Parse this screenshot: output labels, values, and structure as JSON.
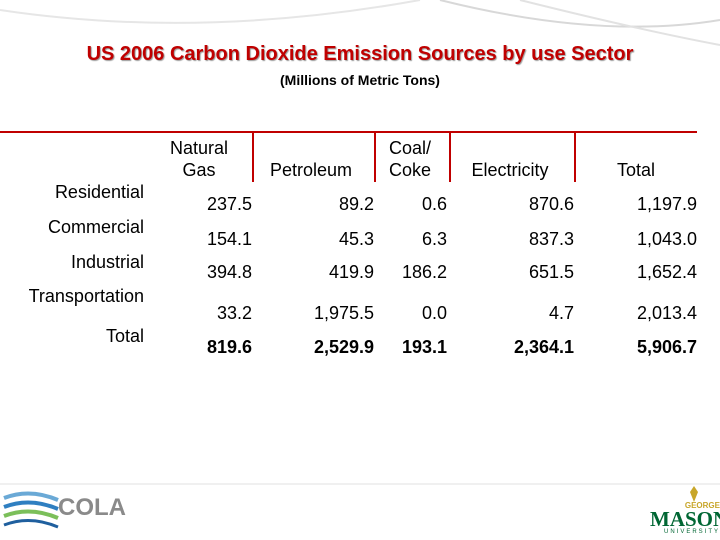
{
  "header": {
    "title": "US 2006 Carbon Dioxide Emission Sources by use Sector",
    "subtitle": "(Millions of Metric Tons)"
  },
  "table": {
    "columns": [
      "Natural Gas",
      "Petroleum",
      "Coal/ Coke",
      "Electricity",
      "Total"
    ],
    "rows": [
      {
        "label": "Residential",
        "values": [
          "237.5",
          "89.2",
          "0.6",
          "870.6",
          "1,197.9"
        ]
      },
      {
        "label": "Commercial",
        "values": [
          "154.1",
          "45.3",
          "6.3",
          "837.3",
          "1,043.0"
        ]
      },
      {
        "label": "Industrial",
        "values": [
          "394.8",
          "419.9",
          "186.2",
          "651.5",
          "1,652.4"
        ]
      },
      {
        "label": "Transportation",
        "values": [
          "33.2",
          "1,975.5",
          "0.0",
          "4.7",
          "2,013.4"
        ]
      },
      {
        "label": "Total",
        "values": [
          "819.6",
          "2,529.9",
          "193.1",
          "2,364.1",
          "5,906.7"
        ]
      }
    ]
  },
  "footer": {
    "left_logo": "COLA",
    "right_logo": {
      "top": "GEORGE",
      "main": "MASON",
      "bottom": "UNIVERSITY"
    }
  }
}
